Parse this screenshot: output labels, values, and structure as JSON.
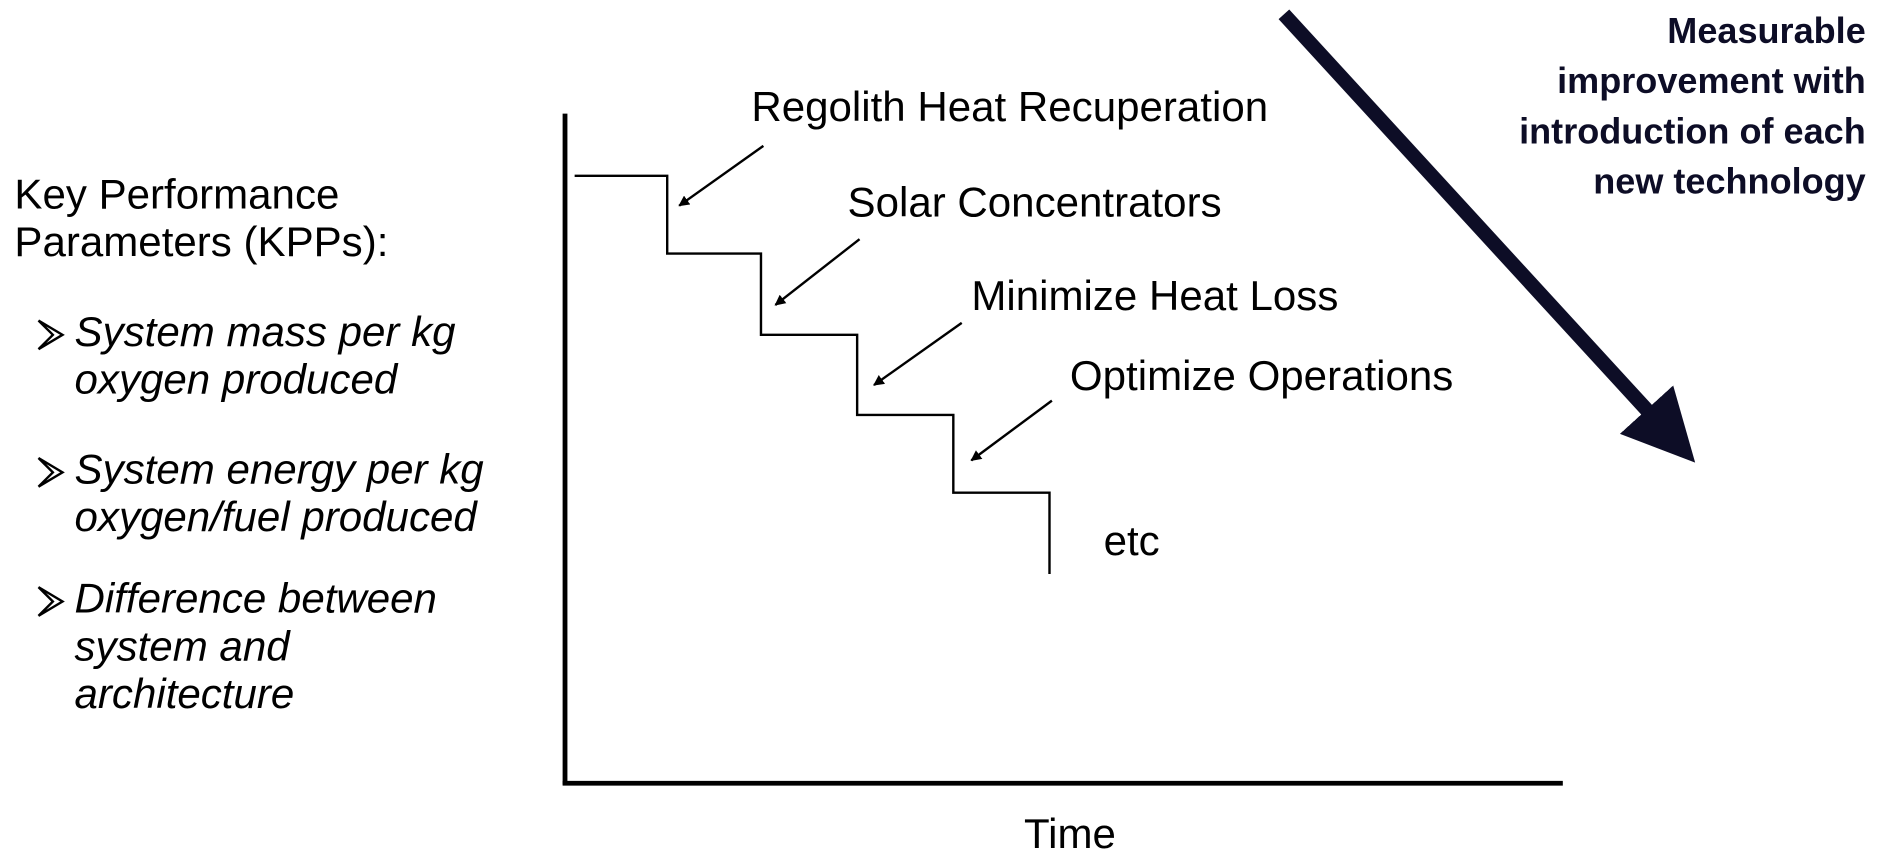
{
  "kpp": {
    "heading": [
      "Key Performance",
      "Parameters (KPPs):"
    ],
    "items": [
      [
        "System mass per kg",
        "oxygen produced"
      ],
      [
        "System energy per kg",
        "oxygen/fuel produced"
      ],
      [
        "Difference between",
        "system and",
        "architecture"
      ]
    ]
  },
  "steps": [
    "Regolith Heat Recuperation",
    "Solar Concentrators",
    "Minimize Heat Loss",
    "Optimize Operations"
  ],
  "etc": "etc",
  "x_axis_label": "Time",
  "note": [
    "Measurable",
    "improvement with",
    "introduction of each",
    "new technology"
  ]
}
